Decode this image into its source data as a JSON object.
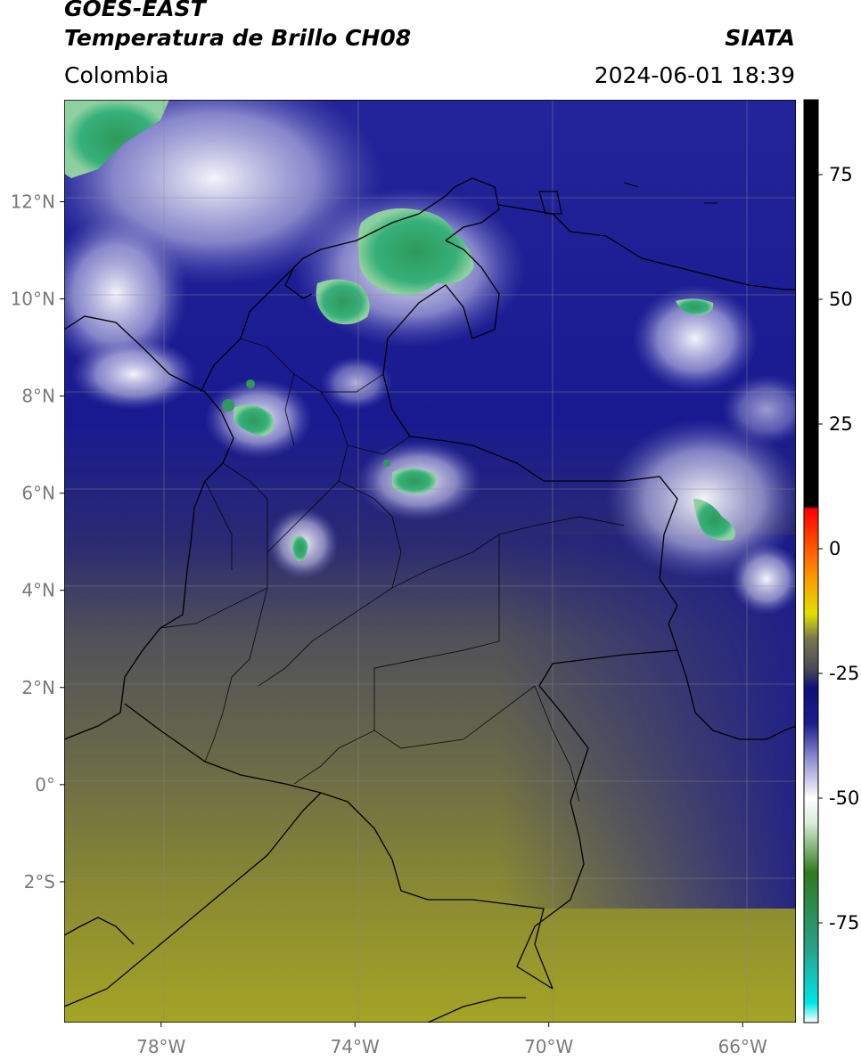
{
  "header": {
    "satellite": "GOES-EAST",
    "product": "Temperatura de Brillo CH08",
    "region": "Colombia",
    "organization": "SIATA",
    "timestamp": "2024-06-01 18:39"
  },
  "map": {
    "lon_range": [
      -80,
      -64.9
    ],
    "lat_range": [
      -4.9,
      14.1
    ],
    "lat_ticks": [
      {
        "value": 12,
        "label": "12°N"
      },
      {
        "value": 10,
        "label": "10°N"
      },
      {
        "value": 8,
        "label": "8°N"
      },
      {
        "value": 6,
        "label": "6°N"
      },
      {
        "value": 4,
        "label": "4°N"
      },
      {
        "value": 2,
        "label": "2°N"
      },
      {
        "value": 0,
        "label": "0°"
      },
      {
        "value": -2,
        "label": "2°S"
      }
    ],
    "lon_ticks": [
      {
        "value": -78,
        "label": "78°W"
      },
      {
        "value": -74,
        "label": "74°W"
      },
      {
        "value": -70,
        "label": "70°W"
      },
      {
        "value": -66,
        "label": "66°W"
      }
    ],
    "grid": true
  },
  "colorbar": {
    "range": [
      -95,
      90
    ],
    "ticks": [
      {
        "value": 75,
        "label": "75"
      },
      {
        "value": 50,
        "label": "50"
      },
      {
        "value": 25,
        "label": "25"
      },
      {
        "value": 0,
        "label": "0"
      },
      {
        "value": -25,
        "label": "-25"
      },
      {
        "value": -50,
        "label": "-50"
      },
      {
        "value": -75,
        "label": "-75"
      }
    ],
    "color_stops": [
      {
        "value": -95,
        "color": "#ffffff"
      },
      {
        "value": -91,
        "color": "#00e5e5"
      },
      {
        "value": -80,
        "color": "#2aa08a"
      },
      {
        "value": -65,
        "color": "#2e7a1e"
      },
      {
        "value": -55,
        "color": "#d8ecd8"
      },
      {
        "value": -50,
        "color": "#ffffff"
      },
      {
        "value": -42,
        "color": "#8c8cd0"
      },
      {
        "value": -35,
        "color": "#1c1c90"
      },
      {
        "value": -28,
        "color": "#10107a"
      },
      {
        "value": -24,
        "color": "#4a4a58"
      },
      {
        "value": -18,
        "color": "#78784a"
      },
      {
        "value": -13,
        "color": "#e0e000"
      },
      {
        "value": -5,
        "color": "#ff9000"
      },
      {
        "value": 8,
        "color": "#ff0000"
      },
      {
        "value": 8.5,
        "color": "#000000"
      },
      {
        "value": 90,
        "color": "#000000"
      }
    ]
  },
  "colors": {
    "cold_cloud_top": "#2ea87a",
    "high_cloud": "#ffffff",
    "mid_level": "#1a1a8c",
    "dry_air": "#9a9a30",
    "borders": "#000000"
  }
}
